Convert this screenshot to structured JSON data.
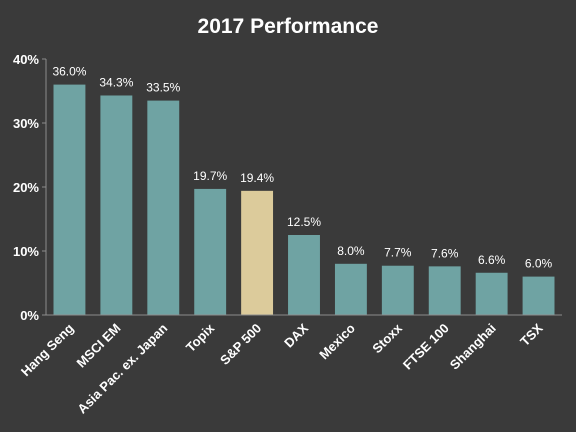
{
  "chart_data": {
    "type": "bar",
    "title": "2017 Performance",
    "xlabel": "",
    "ylabel": "",
    "ylim": [
      0,
      40
    ],
    "yticks": [
      0,
      10,
      20,
      30,
      40
    ],
    "ytick_labels": [
      "0%",
      "10%",
      "20%",
      "30%",
      "40%"
    ],
    "categories": [
      "Hang Seng",
      "MSCI EM",
      "Asia Pac. ex. Japan",
      "Topix",
      "S&P 500",
      "DAX",
      "Mexico",
      "Stoxx",
      "FTSE 100",
      "Shanghai",
      "TSX"
    ],
    "values": [
      36.0,
      34.3,
      33.5,
      19.7,
      19.4,
      12.5,
      8.0,
      7.7,
      7.6,
      6.6,
      6.0
    ],
    "data_labels": [
      "36.0%",
      "34.3%",
      "33.5%",
      "19.7%",
      "19.4%",
      "12.5%",
      "8.0%",
      "7.7%",
      "7.6%",
      "6.6%",
      "6.0%"
    ],
    "bar_color": "#6fa3a3",
    "highlight_color": "#dccb9b",
    "highlight_index": 4,
    "background_color": "#3a3a3a",
    "grid": false,
    "legend": "none"
  }
}
